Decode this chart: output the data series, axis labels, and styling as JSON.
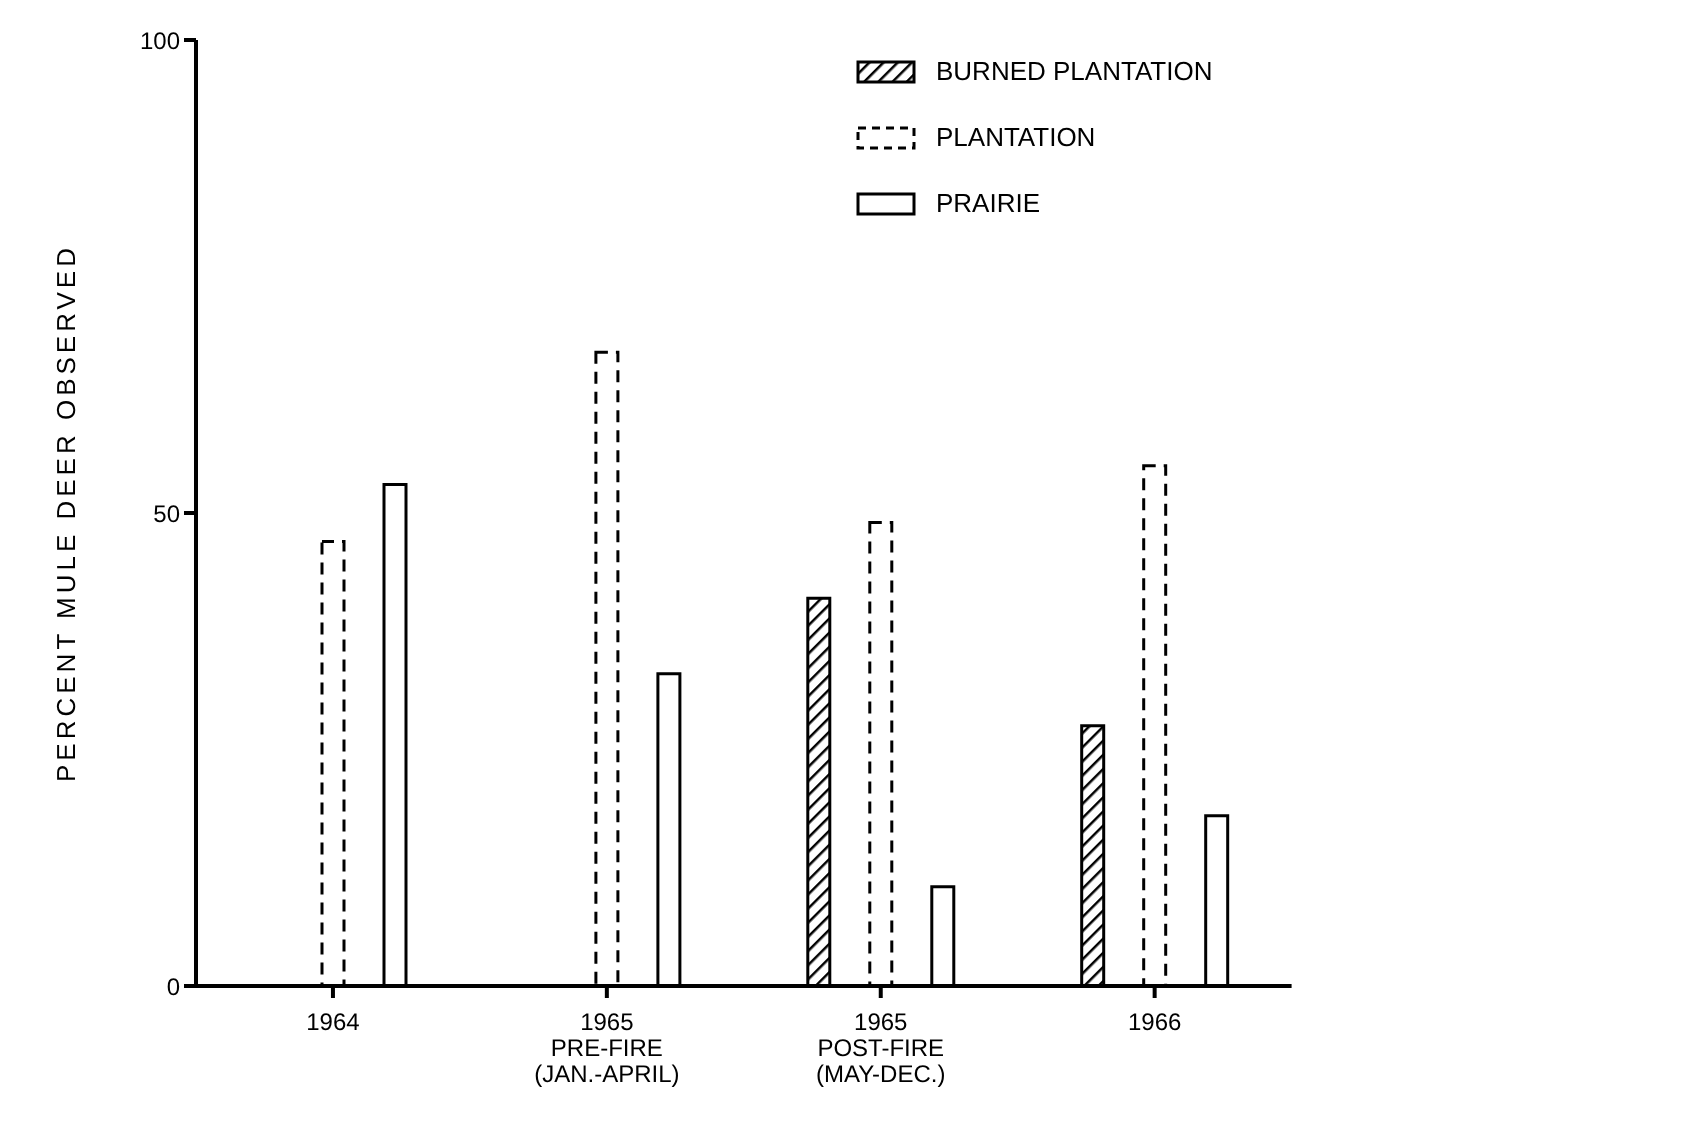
{
  "chart_data": {
    "type": "bar",
    "ylabel": "PERCENT MULE DEER OBSERVED",
    "categories": [
      "1964",
      "1965\nPRE-FIRE\n(JAN.-APRIL)",
      "1965\nPOST-FIRE\n(MAY-DEC.)",
      "1966"
    ],
    "series": [
      {
        "name": "BURNED PLANTATION",
        "color": "#000000",
        "values": [
          null,
          null,
          41,
          27.5
        ]
      },
      {
        "name": "PLANTATION",
        "color": "#000000",
        "line_style": "dashed",
        "values": [
          47,
          67,
          49,
          55
        ]
      },
      {
        "name": "PRAIRIE",
        "color": "#000000",
        "line_style": "solid",
        "values": [
          53,
          33,
          10.5,
          18
        ]
      }
    ],
    "ylim": [
      0,
      100
    ],
    "yticks": [
      0,
      50,
      100
    ],
    "grid": false,
    "legend": "top right"
  }
}
